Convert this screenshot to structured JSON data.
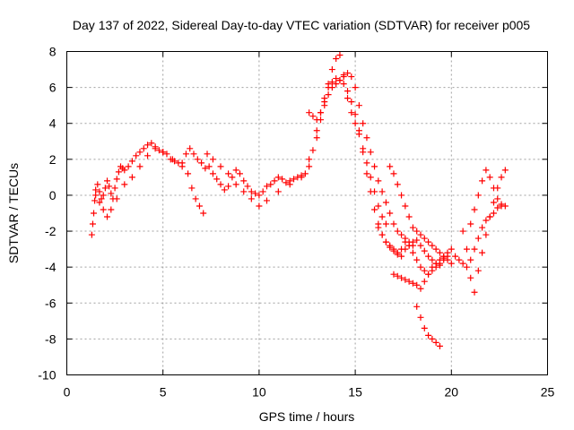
{
  "chart_data": {
    "type": "scatter",
    "title": "Day 137 of 2022, Sidereal Day-to-day VTEC variation (SDTVAR) for receiver p005",
    "xlabel": "GPS time / hours",
    "ylabel": "SDTVAR / TECUs",
    "xlim": [
      0,
      25
    ],
    "ylim": [
      -10,
      8
    ],
    "xticks": [
      0,
      5,
      10,
      15,
      20,
      25
    ],
    "yticks": [
      -10,
      -8,
      -6,
      -4,
      -2,
      0,
      2,
      4,
      6,
      8
    ],
    "grid": true,
    "marker": "+",
    "color": "#ff0000",
    "series": [
      {
        "x": [
          1.3,
          1.35,
          1.4,
          1.45,
          1.5,
          1.6,
          1.7,
          1.8,
          1.9,
          2.0,
          2.1,
          2.2,
          2.3,
          2.4,
          2.5,
          2.6,
          2.7,
          2.8,
          2.9,
          3.0,
          3.2,
          3.4,
          3.6,
          3.8,
          4.0,
          4.2,
          4.4,
          4.6,
          4.8,
          5.0,
          5.2,
          5.4,
          5.6,
          5.8,
          6.0,
          6.2,
          6.4,
          6.6,
          6.8,
          7.0,
          7.2,
          7.4,
          7.6,
          7.8,
          8.0,
          8.2,
          8.4,
          8.6,
          8.8,
          9.0,
          9.2,
          9.4,
          9.6,
          9.8,
          10.0,
          10.2,
          10.4,
          10.6,
          10.8,
          11.0,
          11.2,
          11.4,
          11.6,
          11.8,
          12.0,
          12.2,
          12.4,
          12.6,
          12.8,
          13.0,
          13.2,
          13.4,
          13.6,
          13.8,
          14.0,
          14.2,
          14.4,
          14.6,
          14.8,
          15.0,
          15.2,
          15.4,
          15.6,
          15.8,
          16.0,
          16.2,
          16.4,
          16.6,
          16.8,
          17.0,
          17.2,
          17.4,
          17.6,
          17.8,
          18.0,
          18.2,
          18.4,
          18.6,
          18.8,
          19.0,
          19.2,
          19.4,
          19.6,
          19.8,
          20.0,
          20.2,
          20.4,
          20.6,
          20.8,
          21.0,
          21.2,
          21.4,
          21.6,
          21.8,
          22.0,
          22.2,
          22.4,
          22.6,
          22.8
        ],
        "y": [
          -2.2,
          -1.6,
          -1.0,
          -0.3,
          0.3,
          0.6,
          0.2,
          -0.2,
          0.0,
          0.4,
          0.8,
          0.5,
          0.1,
          -0.2,
          0.4,
          0.9,
          1.3,
          1.6,
          1.5,
          1.4,
          1.6,
          1.9,
          2.2,
          2.4,
          2.6,
          2.8,
          2.9,
          2.7,
          2.5,
          2.4,
          2.3,
          2.0,
          1.9,
          1.8,
          1.6,
          2.3,
          2.6,
          2.3,
          2.0,
          1.8,
          1.5,
          1.6,
          1.2,
          0.9,
          0.6,
          0.3,
          0.5,
          1.0,
          1.4,
          1.2,
          0.8,
          0.5,
          0.2,
          0.1,
          0.0,
          0.2,
          0.5,
          0.6,
          0.8,
          1.0,
          0.9,
          0.7,
          0.8,
          0.9,
          1.0,
          1.1,
          1.2,
          1.6,
          2.5,
          3.6,
          4.6,
          5.4,
          6.0,
          6.3,
          6.5,
          6.4,
          6.2,
          5.8,
          5.2,
          4.5,
          3.6,
          2.4,
          1.2,
          0.2,
          -0.8,
          -1.6,
          -2.2,
          -2.6,
          -2.8,
          -3.0,
          -3.2,
          -3.4,
          -3.0,
          -2.8,
          -2.6,
          -2.5,
          -2.8,
          -3.1,
          -3.4,
          -3.6,
          -3.8,
          -3.9,
          -3.5,
          -3.2,
          -3.0,
          -3.4,
          -3.6,
          -3.8,
          -4.0,
          -3.6,
          -3.0,
          -2.4,
          -1.8,
          -1.4,
          -1.2,
          -1.0,
          -0.7,
          -0.5,
          -0.6
        ]
      },
      {
        "x": [
          1.5,
          1.7,
          1.9,
          2.1,
          2.3,
          2.6,
          3.0,
          3.4,
          3.8,
          4.2,
          4.6,
          5.0,
          5.5,
          6.0,
          6.3,
          6.5,
          6.7,
          6.9,
          7.1,
          7.3,
          7.6,
          8.0,
          8.4,
          8.8,
          9.2,
          9.6,
          10.0,
          10.4,
          11.0,
          11.6,
          12.2,
          12.6,
          13.0,
          13.2,
          13.4,
          13.6,
          13.8,
          14.0,
          14.2,
          14.4,
          14.6,
          14.8,
          15.0,
          15.2,
          15.4,
          15.6,
          15.8,
          16.0,
          16.2,
          16.4,
          16.6
        ],
        "y": [
          0.0,
          -0.4,
          -0.8,
          -1.2,
          -0.8,
          -0.2,
          0.6,
          1.0,
          1.6,
          2.2,
          2.6,
          2.4,
          2.0,
          1.8,
          1.2,
          0.4,
          -0.2,
          -0.6,
          -1.0,
          2.3,
          2.0,
          1.6,
          1.2,
          0.6,
          0.2,
          -0.2,
          -0.6,
          -0.3,
          0.2,
          0.6,
          1.0,
          2.0,
          3.2,
          4.2,
          5.2,
          6.2,
          7.0,
          7.6,
          7.8,
          6.6,
          5.4,
          4.6,
          4.0,
          3.4,
          2.6,
          1.8,
          1.0,
          0.2,
          -0.6,
          -1.2,
          -1.6
        ]
      },
      {
        "x": [
          12.6,
          12.8,
          13.0,
          13.2,
          13.4,
          13.6,
          13.8,
          14.0,
          14.2,
          14.4,
          14.6,
          14.8,
          15.0,
          15.2,
          15.4,
          15.6,
          15.8,
          16.0,
          16.2,
          16.4,
          16.6,
          16.8,
          17.0,
          17.2,
          17.4,
          17.6,
          17.8,
          18.0
        ],
        "y": [
          4.6,
          4.4,
          4.2,
          4.6,
          5.0,
          5.6,
          6.0,
          6.2,
          6.4,
          6.7,
          6.8,
          6.6,
          6.0,
          5.0,
          4.0,
          3.2,
          2.4,
          1.6,
          0.8,
          0.2,
          -0.4,
          -1.0,
          -1.6,
          -2.0,
          -2.2,
          -2.4,
          -2.6,
          -2.8
        ]
      },
      {
        "x": [
          16.2,
          16.4,
          16.6,
          16.8,
          17.0,
          17.2,
          17.4,
          17.6,
          17.8,
          18.0,
          18.2,
          18.4,
          18.6,
          18.8,
          19.0,
          19.2,
          19.4,
          19.6,
          19.8
        ],
        "y": [
          -1.8,
          -2.2,
          -2.6,
          -2.9,
          -3.1,
          -3.3,
          -3.0,
          -2.6,
          -2.8,
          -3.2,
          -3.6,
          -4.0,
          -4.2,
          -4.4,
          -4.2,
          -4.0,
          -3.8,
          -3.6,
          -3.4
        ]
      },
      {
        "x": [
          16.8,
          17.0,
          17.2,
          17.4,
          17.6,
          17.8,
          18.0,
          18.2,
          18.4,
          18.6,
          18.8,
          19.0,
          19.2,
          19.4,
          19.6,
          19.8,
          20.0
        ],
        "y": [
          1.6,
          1.2,
          0.6,
          0.0,
          -0.6,
          -1.2,
          -1.8,
          -2.0,
          -2.2,
          -2.4,
          -2.6,
          -2.8,
          -3.0,
          -3.2,
          -3.4,
          -3.6,
          -3.8
        ]
      },
      {
        "x": [
          17.0,
          17.2,
          17.4,
          17.6,
          17.8,
          18.0,
          18.2,
          18.4,
          18.6,
          18.8,
          19.0,
          19.2,
          19.4,
          19.6
        ],
        "y": [
          -4.4,
          -4.5,
          -4.6,
          -4.7,
          -4.8,
          -4.9,
          -5.0,
          -5.2,
          -4.8,
          -4.4,
          -4.0,
          -3.8,
          -3.6,
          -3.4
        ]
      },
      {
        "x": [
          18.2,
          18.4,
          18.6,
          18.8,
          19.0,
          19.2,
          19.4
        ],
        "y": [
          -6.2,
          -6.8,
          -7.4,
          -7.8,
          -8.0,
          -8.2,
          -8.4
        ]
      },
      {
        "x": [
          20.6,
          20.8,
          21.0,
          21.2,
          21.4,
          21.6,
          21.8,
          22.0,
          22.2,
          22.4,
          22.6,
          22.8
        ],
        "y": [
          -2.0,
          -3.0,
          -4.6,
          -5.4,
          -4.2,
          -3.2,
          -2.2,
          -1.2,
          -0.4,
          0.4,
          1.0,
          1.4
        ]
      },
      {
        "x": [
          21.0,
          21.2,
          21.4,
          21.6,
          21.8,
          22.0,
          22.2,
          22.4,
          22.6
        ],
        "y": [
          -1.6,
          -0.8,
          0.0,
          0.8,
          1.4,
          1.0,
          0.4,
          -0.2,
          -0.6
        ]
      }
    ]
  }
}
